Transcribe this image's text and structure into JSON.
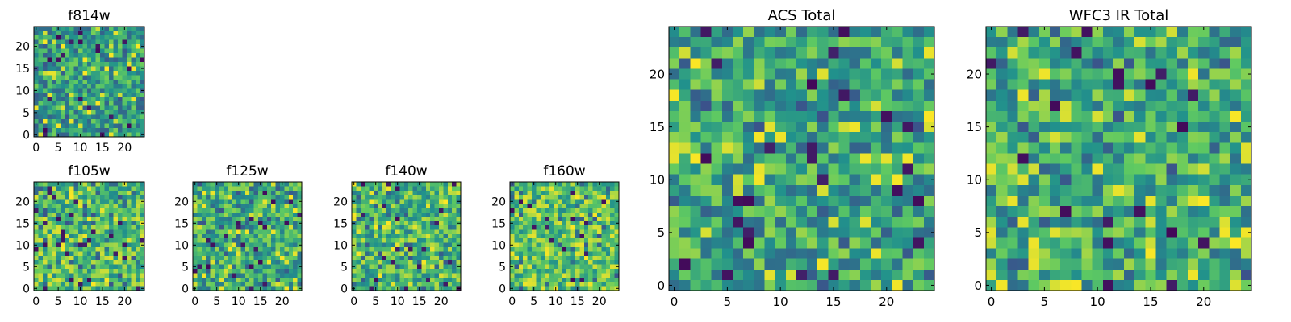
{
  "figure": {
    "colormap": "viridis",
    "colormap_stops": [
      "#440154",
      "#3b528b",
      "#21918c",
      "#5ec962",
      "#fde725"
    ]
  },
  "chart_data": [
    {
      "type": "heatmap",
      "title": "f814w",
      "x_range": [
        0,
        24
      ],
      "y_range": [
        0,
        24
      ],
      "xticks": [
        "0",
        "5",
        "10",
        "15",
        "20"
      ],
      "yticks": [
        "0",
        "5",
        "10",
        "15",
        "20"
      ],
      "dominant_range": "green-teal with scattered dark pixels"
    },
    {
      "type": "heatmap",
      "title": "f105w",
      "x_range": [
        0,
        24
      ],
      "y_range": [
        0,
        24
      ],
      "xticks": [
        "0",
        "5",
        "10",
        "15",
        "20"
      ],
      "yticks": [
        "0",
        "5",
        "10",
        "15",
        "20"
      ],
      "dominant_range": "green-yellow"
    },
    {
      "type": "heatmap",
      "title": "f125w",
      "x_range": [
        0,
        24
      ],
      "y_range": [
        0,
        24
      ],
      "xticks": [
        "0",
        "5",
        "10",
        "15",
        "20"
      ],
      "yticks": [
        "0",
        "5",
        "10",
        "15",
        "20"
      ],
      "dominant_range": "green-yellow"
    },
    {
      "type": "heatmap",
      "title": "f140w",
      "x_range": [
        0,
        24
      ],
      "y_range": [
        0,
        24
      ],
      "xticks": [
        "0",
        "5",
        "10",
        "15",
        "20"
      ],
      "yticks": [
        "0",
        "5",
        "10",
        "15",
        "20"
      ],
      "dominant_range": "green-yellow"
    },
    {
      "type": "heatmap",
      "title": "f160w",
      "x_range": [
        0,
        24
      ],
      "y_range": [
        0,
        24
      ],
      "xticks": [
        "0",
        "5",
        "10",
        "15",
        "20"
      ],
      "yticks": [
        "0",
        "5",
        "10",
        "15",
        "20"
      ],
      "dominant_range": "green-yellow"
    },
    {
      "type": "heatmap",
      "title": "ACS Total",
      "x_range": [
        0,
        24
      ],
      "y_range": [
        0,
        24
      ],
      "xticks": [
        "0",
        "5",
        "10",
        "15",
        "20"
      ],
      "yticks": [
        "0",
        "5",
        "10",
        "15",
        "20"
      ],
      "dominant_range": "green with dark outliers"
    },
    {
      "type": "heatmap",
      "title": "WFC3 IR Total",
      "x_range": [
        0,
        24
      ],
      "y_range": [
        0,
        24
      ],
      "xticks": [
        "0",
        "5",
        "10",
        "15",
        "20"
      ],
      "yticks": [
        "0",
        "5",
        "10",
        "15",
        "20"
      ],
      "dominant_range": "green with dark outliers"
    }
  ]
}
